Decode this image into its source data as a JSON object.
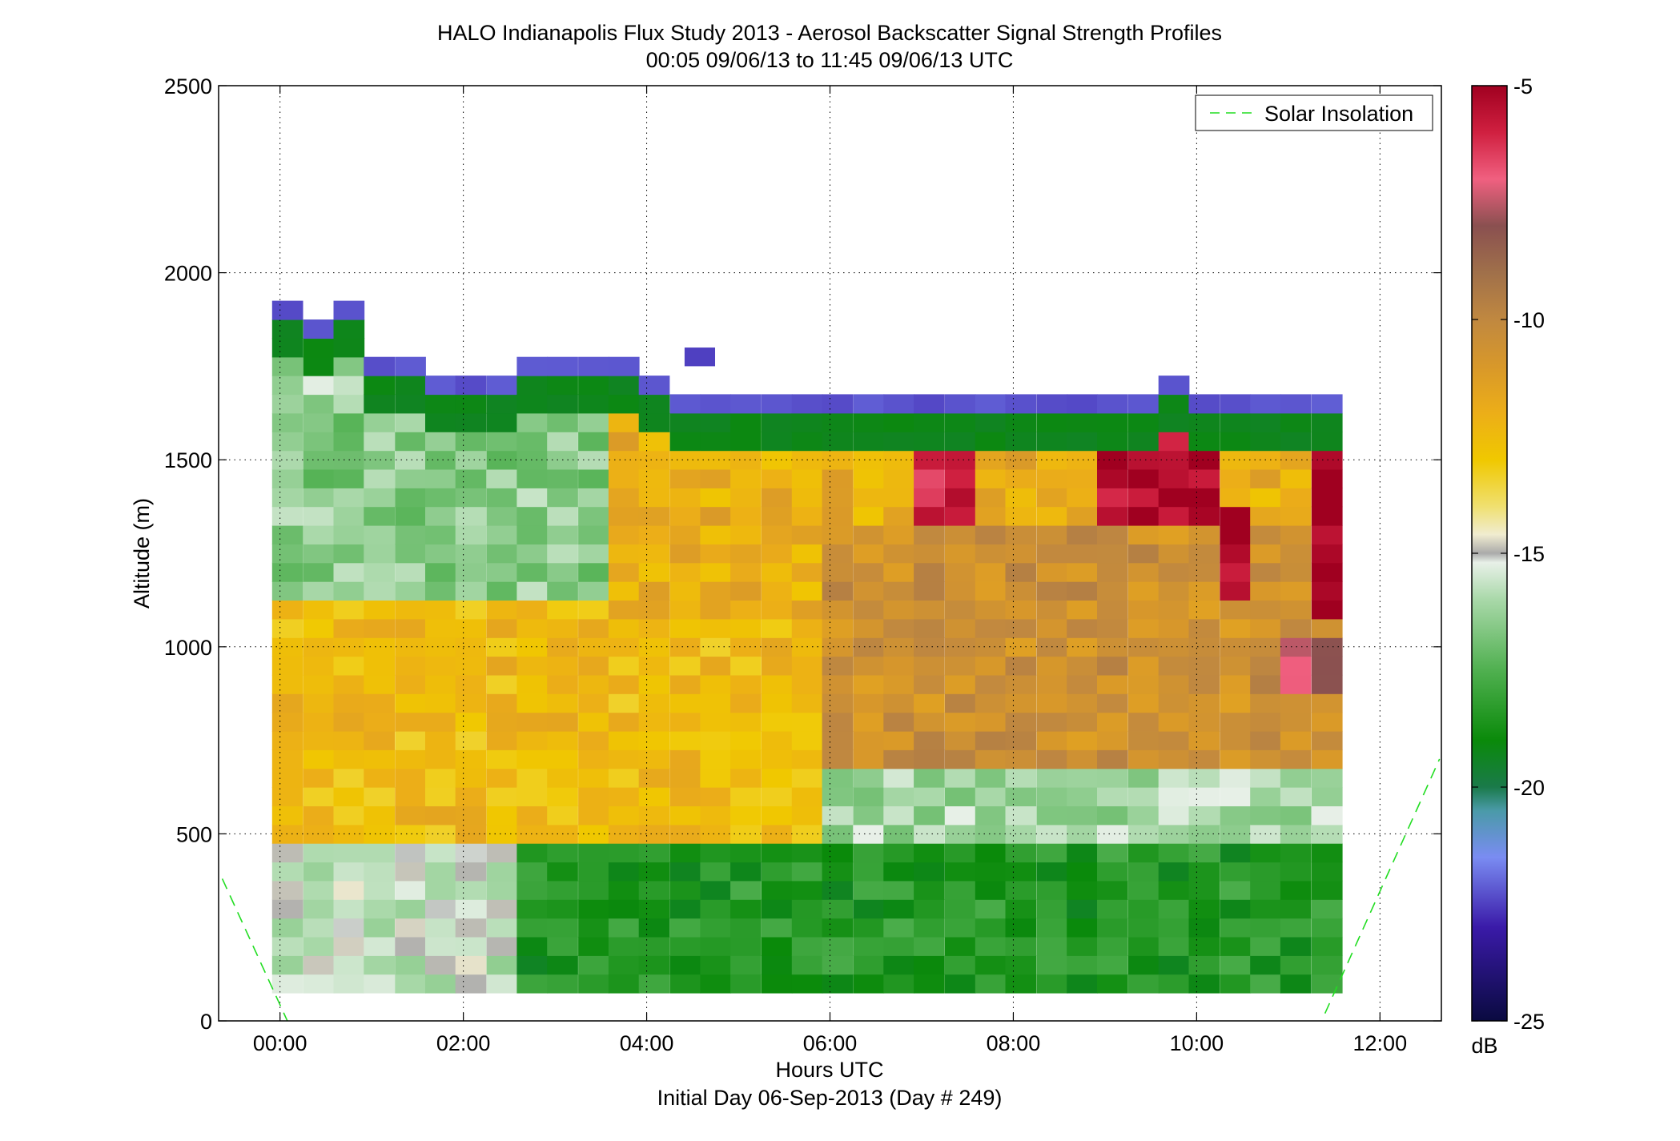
{
  "chart_data": {
    "type": "heatmap",
    "title_line1": "HALO Indianapolis Flux Study 2013 - Aerosol Backscatter Signal Strength Profiles",
    "title_line2": "00:05 09/06/13 to 11:45 09/06/13  UTC",
    "xlabel": "Hours UTC",
    "xlabel2": "Initial Day 06-Sep-2013 (Day # 249)",
    "ylabel": "Altitude (m)",
    "xlim": [
      -0.67,
      12.67
    ],
    "ylim": [
      0,
      2500
    ],
    "x_ticks": [
      0,
      2,
      4,
      6,
      8,
      10,
      12
    ],
    "x_tick_labels": [
      "00:00",
      "02:00",
      "04:00",
      "06:00",
      "08:00",
      "10:00",
      "12:00"
    ],
    "y_ticks": [
      0,
      500,
      1000,
      1500,
      2000,
      2500
    ],
    "y_tick_labels": [
      "0",
      "500",
      "1000",
      "1500",
      "2000",
      "2500"
    ],
    "grid": true,
    "legend": {
      "label": "Solar Insolation",
      "position": "top-right",
      "color": "#22dd22"
    },
    "solar_insolation_lines": [
      {
        "x": [
          -0.63,
          0.08
        ],
        "y": [
          380,
          0
        ]
      },
      {
        "x": [
          11.4,
          12.65
        ],
        "y": [
          20,
          700
        ]
      }
    ],
    "colorbar": {
      "label": "dB",
      "range": [
        -25,
        -5
      ],
      "ticks": [
        -5,
        -10,
        -15,
        -20,
        -25
      ],
      "stops": [
        {
          "v": -25,
          "c": "#0a0a40"
        },
        {
          "v": -23,
          "c": "#3a1aa8"
        },
        {
          "v": -21.5,
          "c": "#7a8cf2"
        },
        {
          "v": -20.5,
          "c": "#4a9aa8"
        },
        {
          "v": -20,
          "c": "#1a7a4a"
        },
        {
          "v": -19,
          "c": "#0a8a0a"
        },
        {
          "v": -17.5,
          "c": "#50b050"
        },
        {
          "v": -16,
          "c": "#a8d8a8"
        },
        {
          "v": -15.2,
          "c": "#e8f0e8"
        },
        {
          "v": -15,
          "c": "#aaaaaa"
        },
        {
          "v": -14.6,
          "c": "#f0ecd0"
        },
        {
          "v": -14,
          "c": "#f0e070"
        },
        {
          "v": -13,
          "c": "#f0c800"
        },
        {
          "v": -12,
          "c": "#ecae18"
        },
        {
          "v": -11,
          "c": "#d8982a"
        },
        {
          "v": -10,
          "c": "#c08840"
        },
        {
          "v": -9,
          "c": "#a0704a"
        },
        {
          "v": -8,
          "c": "#8a5050"
        },
        {
          "v": -7,
          "c": "#f06080"
        },
        {
          "v": -6,
          "c": "#d02040"
        },
        {
          "v": -5,
          "c": "#a00020"
        }
      ]
    },
    "cell_hours": 0.333,
    "cell_alt_m": 50,
    "columns": [
      {
        "t": 0.08,
        "top": 1900,
        "base": 75
      },
      {
        "t": 0.42,
        "top": 1850,
        "base": 75
      },
      {
        "t": 0.75,
        "top": 1900,
        "base": 75
      },
      {
        "t": 1.08,
        "top": 1750,
        "base": 75
      },
      {
        "t": 1.42,
        "top": 1750,
        "base": 75
      },
      {
        "t": 1.75,
        "top": 1700,
        "base": 75
      },
      {
        "t": 2.08,
        "top": 1700,
        "base": 75
      },
      {
        "t": 2.42,
        "top": 1700,
        "base": 75
      },
      {
        "t": 2.75,
        "top": 1750,
        "base": 75
      },
      {
        "t": 3.08,
        "top": 1750,
        "base": 75
      },
      {
        "t": 3.42,
        "top": 1750,
        "base": 75
      },
      {
        "t": 3.75,
        "top": 1750,
        "base": 75
      },
      {
        "t": 4.08,
        "top": 1700,
        "base": 75
      },
      {
        "t": 4.42,
        "top": 1650,
        "base": 75
      },
      {
        "t": 4.75,
        "top": 1650,
        "base": 75
      },
      {
        "t": 5.08,
        "top": 1650,
        "base": 75
      },
      {
        "t": 5.42,
        "top": 1650,
        "base": 75
      },
      {
        "t": 5.75,
        "top": 1650,
        "base": 75
      },
      {
        "t": 6.08,
        "top": 1650,
        "base": 75
      },
      {
        "t": 6.42,
        "top": 1650,
        "base": 75
      },
      {
        "t": 6.75,
        "top": 1650,
        "base": 75
      },
      {
        "t": 7.08,
        "top": 1650,
        "base": 75
      },
      {
        "t": 7.42,
        "top": 1650,
        "base": 75
      },
      {
        "t": 7.75,
        "top": 1650,
        "base": 75
      },
      {
        "t": 8.08,
        "top": 1650,
        "base": 75
      },
      {
        "t": 8.42,
        "top": 1650,
        "base": 75
      },
      {
        "t": 8.75,
        "top": 1650,
        "base": 75
      },
      {
        "t": 9.08,
        "top": 1650,
        "base": 75
      },
      {
        "t": 9.42,
        "top": 1650,
        "base": 75
      },
      {
        "t": 9.75,
        "top": 1700,
        "base": 75
      },
      {
        "t": 10.08,
        "top": 1650,
        "base": 75
      },
      {
        "t": 10.42,
        "top": 1650,
        "base": 75
      },
      {
        "t": 10.75,
        "top": 1650,
        "base": 75
      },
      {
        "t": 11.08,
        "top": 1650,
        "base": 75
      },
      {
        "t": 11.42,
        "top": 1650,
        "base": 75
      }
    ],
    "floating_cells": [
      {
        "t": 4.58,
        "alt": 1775,
        "db": -22.5
      }
    ],
    "features": [
      {
        "name": "near-surface",
        "alt_range": [
          75,
          500
        ],
        "t_range": [
          0.0,
          2.5
        ],
        "db": -15.5
      },
      {
        "name": "near-surface-day",
        "alt_range": [
          75,
          450
        ],
        "t_range": [
          2.5,
          11.6
        ],
        "db": -18.5
      },
      {
        "name": "mixed-layer",
        "alt_range": [
          500,
          1100
        ],
        "t_range": [
          0.0,
          6.0
        ],
        "db": -12.5
      },
      {
        "name": "residual-layer",
        "alt_range": [
          700,
          1300
        ],
        "t_range": [
          6.0,
          11.6
        ],
        "db": -10.5
      },
      {
        "name": "upper-layer",
        "alt_range": [
          1100,
          1600
        ],
        "t_range": [
          0.0,
          3.5
        ],
        "db": -16.5
      },
      {
        "name": "upper-layer-day",
        "alt_range": [
          1100,
          1600
        ],
        "t_range": [
          3.5,
          11.6
        ],
        "db": -12.0
      },
      {
        "name": "cloud-1",
        "alt_range": [
          1350,
          1550
        ],
        "t_range": [
          7.0,
          7.6
        ],
        "db": -6.0
      },
      {
        "name": "cloud-2",
        "alt_range": [
          1350,
          1650
        ],
        "t_range": [
          8.9,
          10.1
        ],
        "db": -5.5
      },
      {
        "name": "cloud-3",
        "alt_range": [
          1150,
          1350
        ],
        "t_range": [
          10.3,
          10.7
        ],
        "db": -5.2
      },
      {
        "name": "cloud-4",
        "alt_range": [
          1100,
          1550
        ],
        "t_range": [
          11.2,
          11.65
        ],
        "db": -5.2
      },
      {
        "name": "aerosol-pink",
        "alt_range": [
          900,
          1000
        ],
        "t_range": [
          10.9,
          11.5
        ],
        "db": -7.2
      }
    ]
  }
}
